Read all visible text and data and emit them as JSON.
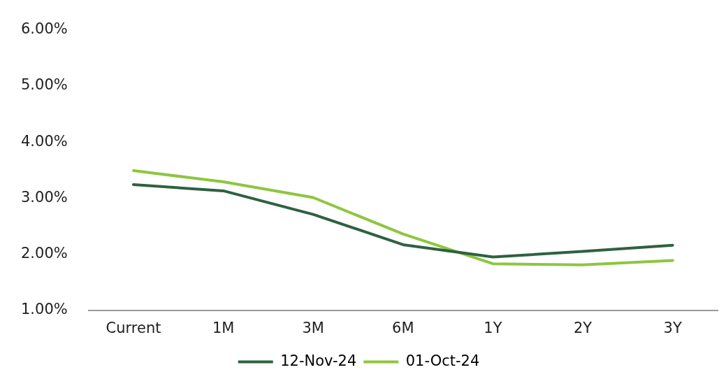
{
  "chart_data": {
    "type": "line",
    "categories": [
      "Current",
      "1M",
      "3M",
      "6M",
      "1Y",
      "2Y",
      "3Y"
    ],
    "series": [
      {
        "name": "12-Nov-24",
        "color": "#2e6140",
        "values": [
          3.24,
          3.13,
          2.71,
          2.17,
          1.95,
          2.05,
          2.16
        ]
      },
      {
        "name": "01-Oct-24",
        "color": "#8dc63f",
        "values": [
          3.49,
          3.29,
          3.01,
          2.36,
          1.83,
          1.81,
          1.89
        ]
      }
    ],
    "ylim": [
      1,
      6
    ],
    "yticks": [
      {
        "value": 1,
        "label": "1.00%"
      },
      {
        "value": 2,
        "label": "2.00%"
      },
      {
        "value": 3,
        "label": "3.00%"
      },
      {
        "value": 4,
        "label": "4.00%"
      },
      {
        "value": 5,
        "label": "5.00%"
      },
      {
        "value": 6,
        "label": "6.00%"
      }
    ],
    "grid": false,
    "legend": "bottom",
    "marker": "none",
    "line_style": "solid"
  }
}
